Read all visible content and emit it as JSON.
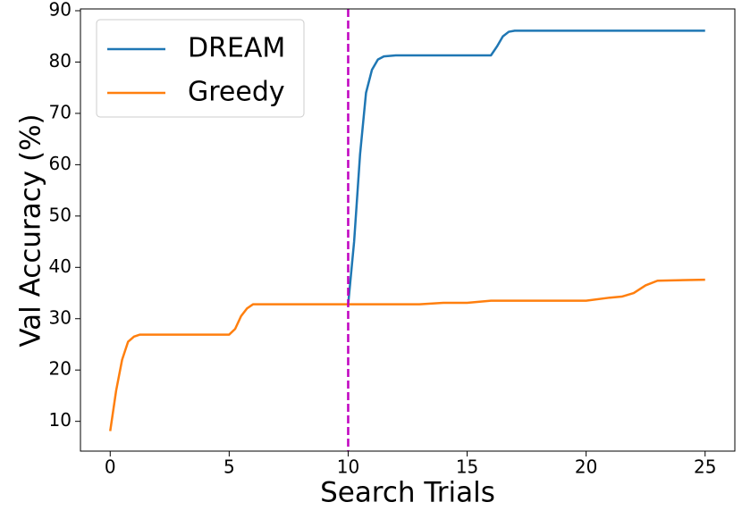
{
  "chart_data": {
    "type": "line",
    "x_label": "Search Trials",
    "y_label": "Val Accuracy (%)",
    "xlim": [
      -1.25,
      26.25
    ],
    "xticks": [
      0,
      5,
      10,
      15,
      20,
      25
    ],
    "ylim": [
      4.2,
      90
    ],
    "yticks": [
      10,
      20,
      30,
      40,
      50,
      60,
      70,
      80,
      90
    ],
    "legend": "upper left",
    "vlines": [
      {
        "x": 10,
        "color": "#c000c0",
        "style": "dashed"
      }
    ],
    "series": [
      {
        "name": "DREAM",
        "color": "#1f77b4",
        "x": [
          10,
          10.25,
          10.5,
          10.75,
          11,
          11.25,
          11.5,
          12,
          16,
          16.25,
          16.5,
          16.75,
          17,
          25
        ],
        "values": [
          32.8,
          45,
          62,
          74,
          78.5,
          80.5,
          81.1,
          81.3,
          81.3,
          83,
          85,
          85.9,
          86.1,
          86.1
        ]
      },
      {
        "name": "Greedy",
        "color": "#ff7f0e",
        "x": [
          0,
          0.25,
          0.5,
          0.75,
          1,
          1.25,
          5,
          5.25,
          5.5,
          5.75,
          6,
          10,
          13,
          14,
          15,
          16,
          20,
          21,
          21.5,
          22,
          22.5,
          23,
          25
        ],
        "values": [
          8.1,
          16,
          22,
          25.5,
          26.5,
          26.9,
          26.9,
          28,
          30.5,
          32,
          32.8,
          32.8,
          32.8,
          33.1,
          33.1,
          33.5,
          33.5,
          34.1,
          34.3,
          35,
          36.5,
          37.4,
          37.6
        ]
      }
    ]
  }
}
